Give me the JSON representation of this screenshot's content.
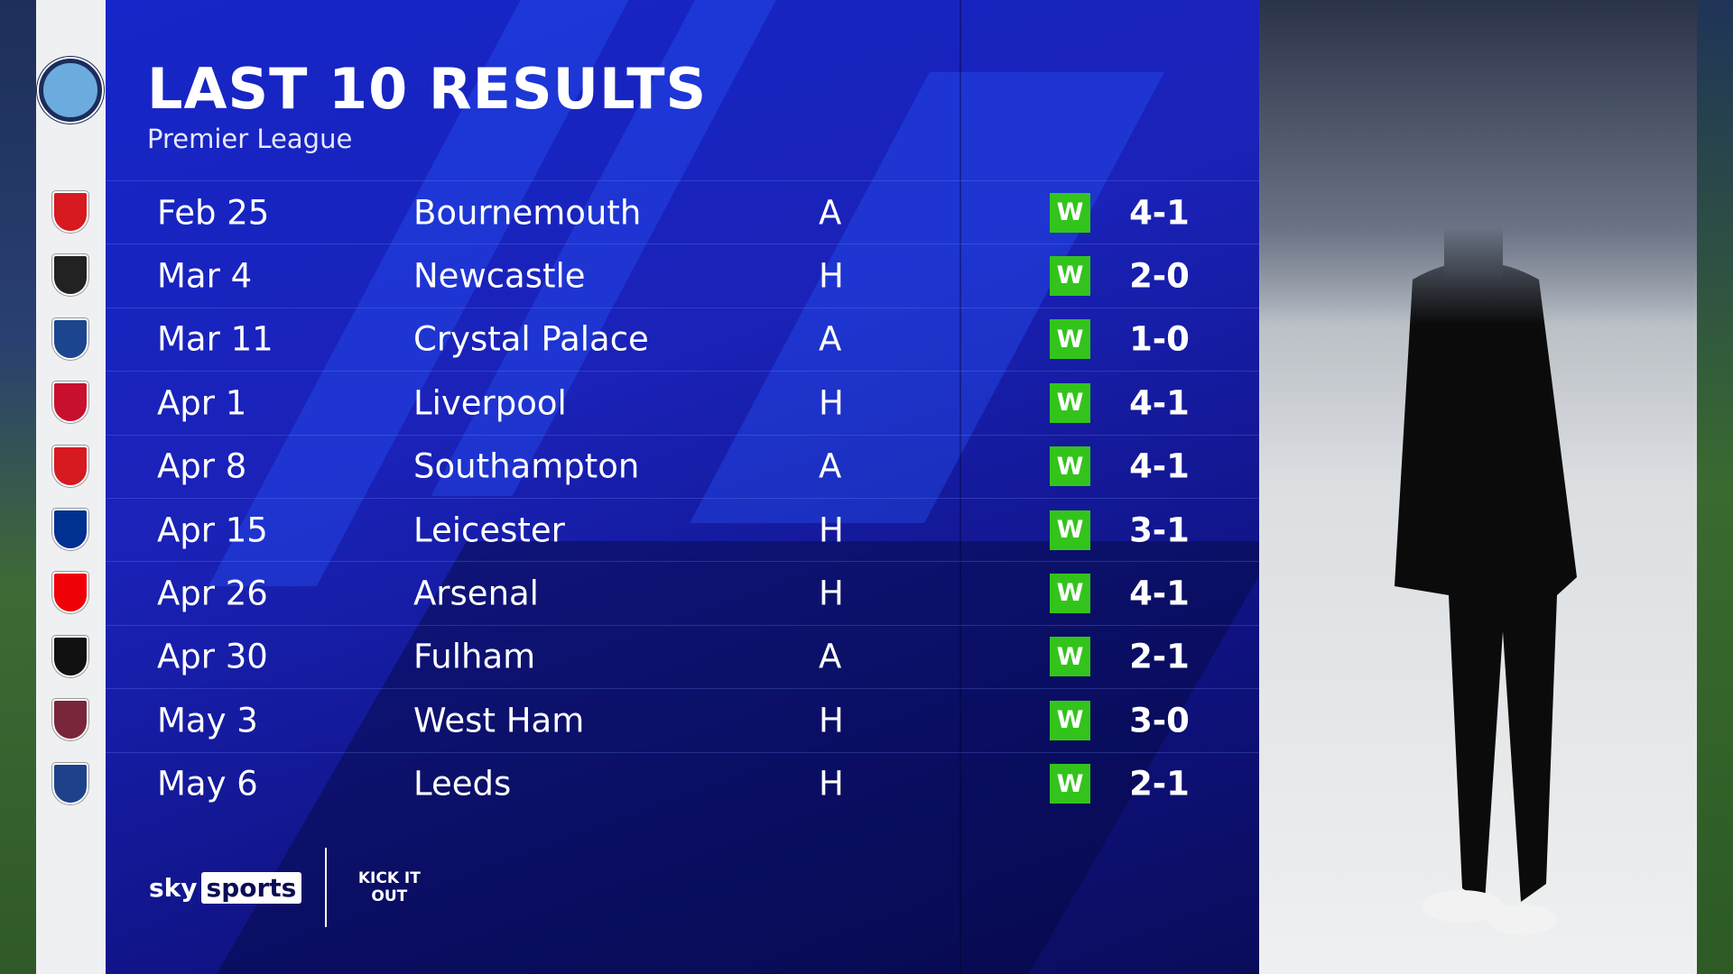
{
  "header": {
    "title": "LAST 10 RESULTS",
    "subtitle": "Premier League"
  },
  "team_crest": {
    "name": "Manchester City",
    "icon": "man-city-crest",
    "text": "MANCHESTER CITY"
  },
  "colors": {
    "panel": "#1626c8",
    "win_badge": "#33c41c",
    "crest_strip": "#eef0f2"
  },
  "results": [
    {
      "date": "Feb 25",
      "opponent": "Bournemouth",
      "venue": "A",
      "result": "W",
      "score": "4-1",
      "crest_color": "#d71920"
    },
    {
      "date": "Mar 4",
      "opponent": "Newcastle",
      "venue": "H",
      "result": "W",
      "score": "2-0",
      "crest_color": "#222222"
    },
    {
      "date": "Mar 11",
      "opponent": "Crystal Palace",
      "venue": "A",
      "result": "W",
      "score": "1-0",
      "crest_color": "#1b458f"
    },
    {
      "date": "Apr 1",
      "opponent": "Liverpool",
      "venue": "H",
      "result": "W",
      "score": "4-1",
      "crest_color": "#c8102e"
    },
    {
      "date": "Apr 8",
      "opponent": "Southampton",
      "venue": "A",
      "result": "W",
      "score": "4-1",
      "crest_color": "#d71920"
    },
    {
      "date": "Apr 15",
      "opponent": "Leicester",
      "venue": "H",
      "result": "W",
      "score": "3-1",
      "crest_color": "#003090"
    },
    {
      "date": "Apr 26",
      "opponent": "Arsenal",
      "venue": "H",
      "result": "W",
      "score": "4-1",
      "crest_color": "#ef0107"
    },
    {
      "date": "Apr 30",
      "opponent": "Fulham",
      "venue": "A",
      "result": "W",
      "score": "2-1",
      "crest_color": "#111111"
    },
    {
      "date": "May 3",
      "opponent": "West Ham",
      "venue": "H",
      "result": "W",
      "score": "3-0",
      "crest_color": "#7a263a"
    },
    {
      "date": "May 6",
      "opponent": "Leeds",
      "venue": "H",
      "result": "W",
      "score": "2-1",
      "crest_color": "#1d428a"
    }
  ],
  "logos": {
    "sky_a": "sky",
    "sky_b": "sports",
    "kick_it_out": "KICK IT OUT"
  }
}
